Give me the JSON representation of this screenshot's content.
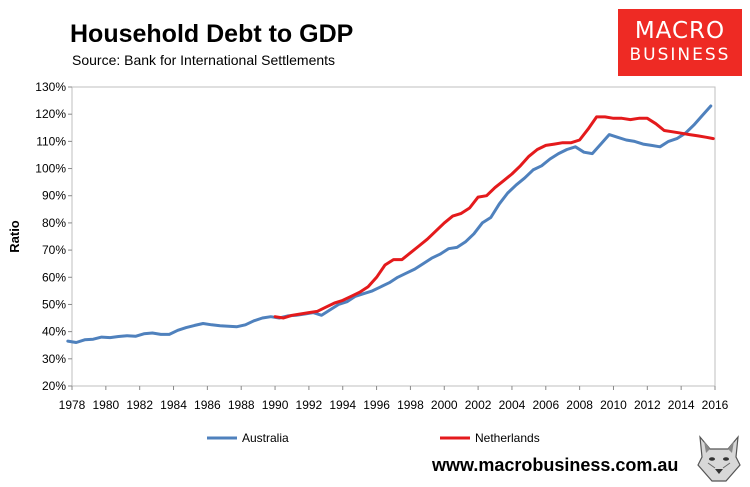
{
  "header": {
    "title": "Household Debt to GDP",
    "subtitle": "Source: Bank for International Settlements"
  },
  "logo": {
    "line1": "MACRO",
    "line2": "BUSINESS"
  },
  "footer": {
    "url": "www.macrobusiness.com.au"
  },
  "chart_data": {
    "type": "line",
    "title": "Household Debt to GDP",
    "xlabel": "",
    "ylabel": "Ratio",
    "xlim": [
      1978,
      2016
    ],
    "ylim": [
      20,
      130
    ],
    "x_ticks": [
      "1978",
      "1980",
      "1982",
      "1984",
      "1986",
      "1988",
      "1990",
      "1992",
      "1994",
      "1996",
      "1998",
      "2000",
      "2002",
      "2004",
      "2006",
      "2008",
      "2010",
      "2012",
      "2014",
      "2016"
    ],
    "y_ticks": [
      "20%",
      "30%",
      "40%",
      "50%",
      "60%",
      "70%",
      "80%",
      "90%",
      "100%",
      "110%",
      "120%",
      "130%"
    ],
    "grid": false,
    "legend": "bottom",
    "series": [
      {
        "name": "Australia",
        "color": "#4f81bd",
        "x": [
          1977.75,
          1978.25,
          1978.75,
          1979.25,
          1979.75,
          1980.25,
          1980.75,
          1981.25,
          1981.75,
          1982.25,
          1982.75,
          1983.25,
          1983.75,
          1984.25,
          1984.75,
          1985.25,
          1985.75,
          1986.25,
          1986.75,
          1987.25,
          1987.75,
          1988.25,
          1988.75,
          1989.25,
          1989.75,
          1990.25,
          1990.75,
          1991.25,
          1991.75,
          1992.25,
          1992.75,
          1993.25,
          1993.75,
          1994.25,
          1994.75,
          1995.25,
          1995.75,
          1996.25,
          1996.75,
          1997.25,
          1997.75,
          1998.25,
          1998.75,
          1999.25,
          1999.75,
          2000.25,
          2000.75,
          2001.25,
          2001.75,
          2002.25,
          2002.75,
          2003.25,
          2003.75,
          2004.25,
          2004.75,
          2005.25,
          2005.75,
          2006.25,
          2006.75,
          2007.25,
          2007.75,
          2008.25,
          2008.75,
          2009.25,
          2009.75,
          2010.25,
          2010.75,
          2011.25,
          2011.75,
          2012.25,
          2012.75,
          2013.25,
          2013.75,
          2014.25,
          2014.75,
          2015.25,
          2015.75
        ],
        "y": [
          36.5,
          36.0,
          37.0,
          37.2,
          38.0,
          37.8,
          38.2,
          38.5,
          38.3,
          39.2,
          39.5,
          39.0,
          39.0,
          40.5,
          41.5,
          42.3,
          43.0,
          42.5,
          42.2,
          42.0,
          41.8,
          42.5,
          44.0,
          45.0,
          45.5,
          45.0,
          45.8,
          46.0,
          46.5,
          47.0,
          46.0,
          48.0,
          50.0,
          51.0,
          53.0,
          54.0,
          55.0,
          56.5,
          58.0,
          60.0,
          61.5,
          63.0,
          65.0,
          67.0,
          68.5,
          70.5,
          71.0,
          73.0,
          76.0,
          80.0,
          82.0,
          87.0,
          91.0,
          94.0,
          96.5,
          99.5,
          101.0,
          103.5,
          105.5,
          107.0,
          108.0,
          106.0,
          105.5,
          109.0,
          112.5,
          111.5,
          110.5,
          110.0,
          109.0,
          108.5,
          108.0,
          110.0,
          111.0,
          113.0,
          116.0,
          119.5,
          123.0
        ]
      },
      {
        "name": "Netherlands",
        "color": "#e41a1c",
        "x": [
          1990.0,
          1990.5,
          1991.0,
          1991.5,
          1992.0,
          1992.5,
          1993.0,
          1993.5,
          1994.0,
          1994.5,
          1995.0,
          1995.5,
          1996.0,
          1996.5,
          1997.0,
          1997.5,
          1998.0,
          1998.5,
          1999.0,
          1999.5,
          2000.0,
          2000.5,
          2001.0,
          2001.5,
          2002.0,
          2002.5,
          2003.0,
          2003.5,
          2004.0,
          2004.5,
          2005.0,
          2005.5,
          2006.0,
          2006.5,
          2007.0,
          2007.5,
          2008.0,
          2008.5,
          2009.0,
          2009.5,
          2010.0,
          2010.5,
          2011.0,
          2011.5,
          2012.0,
          2012.5,
          2013.0,
          2013.5,
          2014.0,
          2014.5,
          2015.0,
          2015.5,
          2015.9
        ],
        "y": [
          45.5,
          45.0,
          46.0,
          46.5,
          47.0,
          47.5,
          49.0,
          50.5,
          51.5,
          53.0,
          54.5,
          56.5,
          60.0,
          64.5,
          66.5,
          66.5,
          69.0,
          71.5,
          74.0,
          77.0,
          80.0,
          82.5,
          83.5,
          85.5,
          89.5,
          90.0,
          93.0,
          95.5,
          98.0,
          101.0,
          104.5,
          107.0,
          108.5,
          109.0,
          109.5,
          109.5,
          110.5,
          114.5,
          119.0,
          119.0,
          118.5,
          118.5,
          118.0,
          118.5,
          118.5,
          116.5,
          114.0,
          113.5,
          113.0,
          112.5,
          112.0,
          111.5,
          111.0
        ]
      }
    ]
  }
}
